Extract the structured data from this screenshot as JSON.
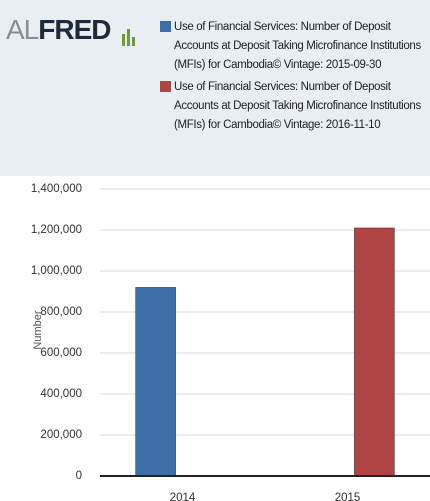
{
  "header": {
    "brand_prefix": "AL",
    "brand_name": "FRED"
  },
  "chart_data": {
    "type": "bar",
    "categories": [
      "2014",
      "2015"
    ],
    "series": [
      {
        "name": "Use of Financial Services: Number of Deposit Accounts at Deposit Taking Microfinance Institutions (MFIs) for Cambodia© Vintage: 2015-09-30",
        "color": "#3d6ea8",
        "values": [
          920000,
          null
        ]
      },
      {
        "name": "Use of Financial Services: Number of Deposit Accounts at Deposit Taking Microfinance Institutions (MFIs) for Cambodia© Vintage: 2016-11-10",
        "color": "#b04343",
        "values": [
          null,
          1210000
        ]
      }
    ],
    "y_label": "Number",
    "ylim": [
      0,
      1400000
    ],
    "yticks": [
      {
        "value": 0,
        "label": "0"
      },
      {
        "value": 200000,
        "label": "200,000"
      },
      {
        "value": 400000,
        "label": "400,000"
      },
      {
        "value": 600000,
        "label": "600,000"
      },
      {
        "value": 800000,
        "label": "800,000"
      },
      {
        "value": 1000000,
        "label": "1,000,000"
      },
      {
        "value": 1200000,
        "label": "1,200,000"
      },
      {
        "value": 1400000,
        "label": "1,400,000"
      }
    ],
    "grid": true
  }
}
